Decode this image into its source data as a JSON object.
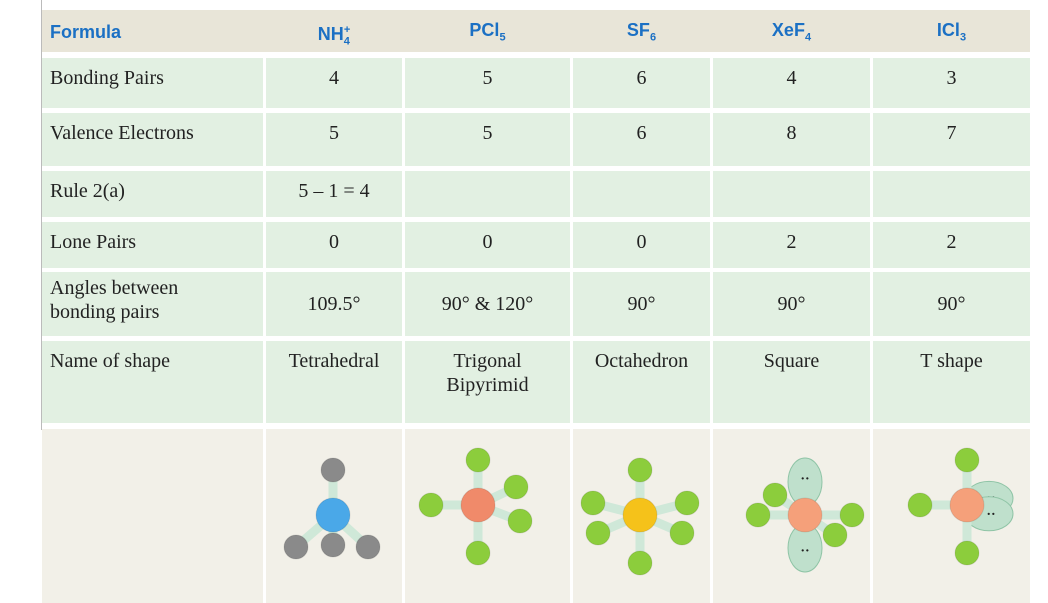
{
  "header": {
    "label": "Formula",
    "formulas": [
      {
        "base": "NH",
        "sub": "4",
        "sup": "+"
      },
      {
        "base": "PCl",
        "sub": "5"
      },
      {
        "base": "SF",
        "sub": "6"
      },
      {
        "base": "XeF",
        "sub": "4"
      },
      {
        "base": "ICl",
        "sub": "3"
      }
    ]
  },
  "rows": [
    {
      "label": "Bonding Pairs",
      "cells": [
        "4",
        "5",
        "6",
        "4",
        "3"
      ]
    },
    {
      "label": "Valence Electrons",
      "cells": [
        "5",
        "5",
        "6",
        "8",
        "7"
      ]
    },
    {
      "label": "Rule 2(a)",
      "cells": [
        "5 – 1 = 4",
        null,
        null,
        null,
        null
      ]
    },
    {
      "label": "Lone Pairs",
      "cells": [
        "0",
        "0",
        "0",
        "2",
        "2"
      ]
    },
    {
      "label": "Angles between bonding pairs",
      "cells": [
        "109.5°",
        "90° & 120°",
        "90°",
        "90°",
        "90°"
      ]
    },
    {
      "label": "Name of shape",
      "cells": [
        "Tetrahedral",
        "Trigonal Bipyrimid",
        "Octahedron",
        "Square",
        "T shape"
      ]
    }
  ]
}
